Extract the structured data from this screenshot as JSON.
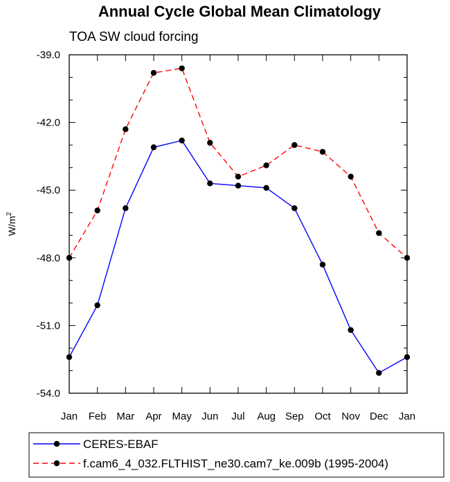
{
  "chart_data": {
    "type": "line",
    "title": "Annual Cycle Global Mean Climatology",
    "subtitle": "TOA SW cloud forcing",
    "ylabel": "W/m",
    "ylabel_superscript": "2",
    "xlabel": "",
    "categories": [
      "Jan",
      "Feb",
      "Mar",
      "Apr",
      "May",
      "Jun",
      "Jul",
      "Aug",
      "Sep",
      "Oct",
      "Nov",
      "Dec",
      "Jan"
    ],
    "ylim": [
      -54.0,
      -39.0
    ],
    "yticks": [
      -54.0,
      -51.0,
      -48.0,
      -45.0,
      -42.0,
      -39.0
    ],
    "ytick_labels": [
      "-54.0",
      "-51.0",
      "-48.0",
      "-45.0",
      "-42.0",
      "-39.0"
    ],
    "grid": false,
    "legend_position": "bottom-left, below plot",
    "series": [
      {
        "name": "CERES-EBAF",
        "color": "#0000ff",
        "dash": "solid",
        "values": [
          -52.4,
          -50.1,
          -45.8,
          -43.1,
          -42.8,
          -44.7,
          -44.8,
          -44.9,
          -45.8,
          -48.3,
          -51.2,
          -53.1,
          -52.4
        ]
      },
      {
        "name": "f.cam6_4_032.FLTHIST_ne30.cam7_ke.009b (1995-2004)",
        "color": "#ff0000",
        "dash": "dashed",
        "values": [
          -48.0,
          -45.9,
          -42.3,
          -39.8,
          -39.6,
          -42.9,
          -44.4,
          -43.9,
          -43.0,
          -43.3,
          -44.4,
          -46.9,
          -48.0
        ]
      }
    ]
  }
}
